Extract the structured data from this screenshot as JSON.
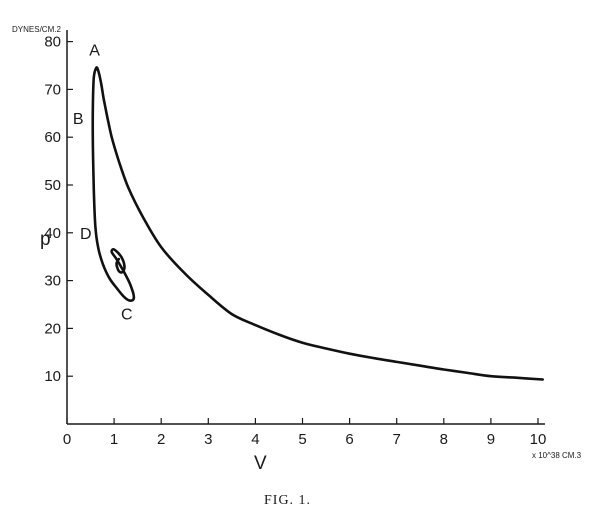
{
  "chart_data": {
    "type": "line",
    "title": "",
    "xlabel": "V",
    "ylabel": "p",
    "x_unit": "x 10^38 CM.3",
    "y_unit": "DYNES/CM.2",
    "xlim": [
      0,
      10.2
    ],
    "ylim": [
      0,
      82
    ],
    "x_ticks": [
      0,
      1,
      2,
      3,
      4,
      5,
      6,
      7,
      8,
      9,
      10
    ],
    "y_ticks": [
      10,
      20,
      30,
      40,
      50,
      60,
      70,
      80
    ],
    "grid": false,
    "series": [
      {
        "x": [
          10.1,
          9.5,
          9.0,
          8.5,
          8.0,
          7.5,
          7.0,
          6.5,
          6.0,
          5.5,
          5.0,
          4.5,
          4.0,
          3.5,
          3.0,
          2.5,
          2.0,
          1.6,
          1.3,
          1.1,
          0.95,
          0.85,
          0.78,
          0.72,
          0.66,
          0.62,
          0.57,
          0.55,
          0.55,
          0.57,
          0.6,
          0.66,
          0.76,
          0.9,
          1.05,
          1.22,
          1.35,
          1.42,
          1.35,
          1.2,
          1.05,
          0.95,
          1.0,
          1.15,
          1.22,
          1.18,
          1.1,
          1.05,
          1.1
        ],
        "y": [
          9.3,
          9.7,
          10.0,
          10.7,
          11.4,
          12.2,
          13.0,
          13.8,
          14.7,
          15.8,
          17.0,
          18.7,
          20.7,
          23.0,
          27.0,
          31.5,
          37.0,
          43.5,
          49.5,
          55.0,
          60.0,
          64.5,
          68.0,
          71.5,
          74.0,
          74.5,
          72.5,
          67.0,
          58.0,
          49.0,
          41.5,
          37.0,
          33.5,
          30.5,
          28.5,
          26.5,
          25.8,
          26.5,
          29.0,
          32.0,
          34.5,
          36.0,
          36.5,
          35.0,
          33.0,
          31.8,
          32.0,
          33.5,
          34.5
        ]
      }
    ],
    "annotations": [
      {
        "text": "A",
        "x": 0.6,
        "y": 75
      },
      {
        "text": "B",
        "x": 0.55,
        "y": 64
      },
      {
        "text": "C",
        "x": 1.4,
        "y": 26
      },
      {
        "text": "D",
        "x": 0.7,
        "y": 40
      }
    ]
  },
  "caption": "FIG. 1."
}
